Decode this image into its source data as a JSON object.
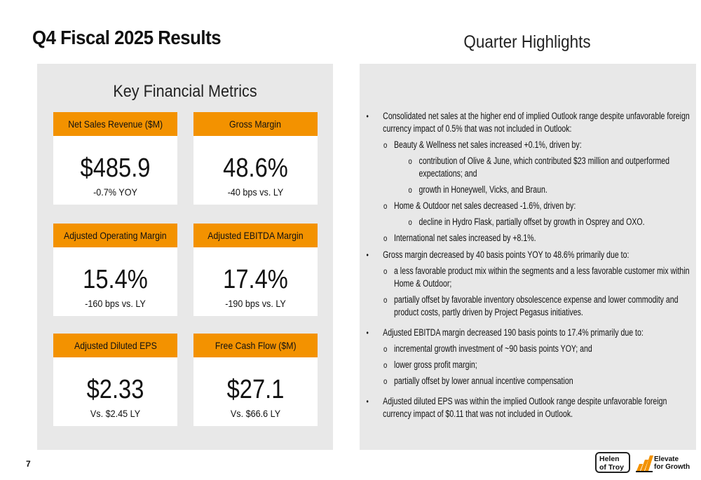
{
  "page": {
    "title": "Q4 Fiscal 2025 Results",
    "highlights_title": "Quarter Highlights",
    "number": "7"
  },
  "metrics": {
    "title": "Key Financial Metrics",
    "cards": [
      {
        "label": "Net Sales Revenue ($M)",
        "value": "$485.9",
        "sub": "-0.7% YOY"
      },
      {
        "label": "Gross Margin",
        "value": "48.6%",
        "sub": "-40 bps vs. LY"
      },
      {
        "label": "Adjusted Operating Margin",
        "value": "15.4%",
        "sub": "-160 bps vs. LY"
      },
      {
        "label": "Adjusted EBITDA Margin",
        "value": "17.4%",
        "sub": "-190 bps vs. LY"
      },
      {
        "label": "Adjusted Diluted EPS",
        "value": "$2.33",
        "sub": "Vs. $2.45 LY"
      },
      {
        "label": "Free Cash Flow ($M)",
        "value": "$27.1",
        "sub": "Vs. $66.6 LY"
      }
    ]
  },
  "highlights": {
    "items": [
      "Consolidated net sales at the higher end of implied Outlook range despite unfavorable foreign currency impact of 0.5% that was not included in Outlook:",
      "Beauty & Wellness net sales increased +0.1%, driven by:",
      "contribution of Olive & June, which contributed $23 million and outperformed expectations; and",
      "growth in Honeywell, Vicks, and Braun.",
      "Home & Outdoor net sales decreased -1.6%, driven by:",
      "decline in Hydro Flask, partially offset by growth in Osprey and OXO.",
      "International net sales increased by +8.1%.",
      "Gross margin decreased by 40 basis points YOY to 48.6% primarily due to:",
      "a less favorable product mix within the segments and a less favorable customer mix within Home & Outdoor;",
      "partially offset by favorable inventory obsolescence expense and lower commodity and product costs, partly driven by Project Pegasus initiatives.",
      "Adjusted EBITDA margin decreased 190 basis points to 17.4% primarily due to:",
      "incremental growth investment of ~90 basis points YOY; and",
      "lower gross profit margin;",
      "partially offset by lower annual incentive compensation",
      "Adjusted diluted EPS was within the implied Outlook range despite unfavorable foreign currency impact of $0.11 that was not included in Outlook."
    ],
    "bullet": "•",
    "sub_bullet": "o"
  },
  "logos": {
    "hot_line1": "Helen",
    "hot_line2": "of Troy",
    "efg_line1": "Elevate",
    "efg_line2": "for Growth"
  },
  "colors": {
    "accent": "#f39200",
    "panel": "#e8e8e8"
  }
}
